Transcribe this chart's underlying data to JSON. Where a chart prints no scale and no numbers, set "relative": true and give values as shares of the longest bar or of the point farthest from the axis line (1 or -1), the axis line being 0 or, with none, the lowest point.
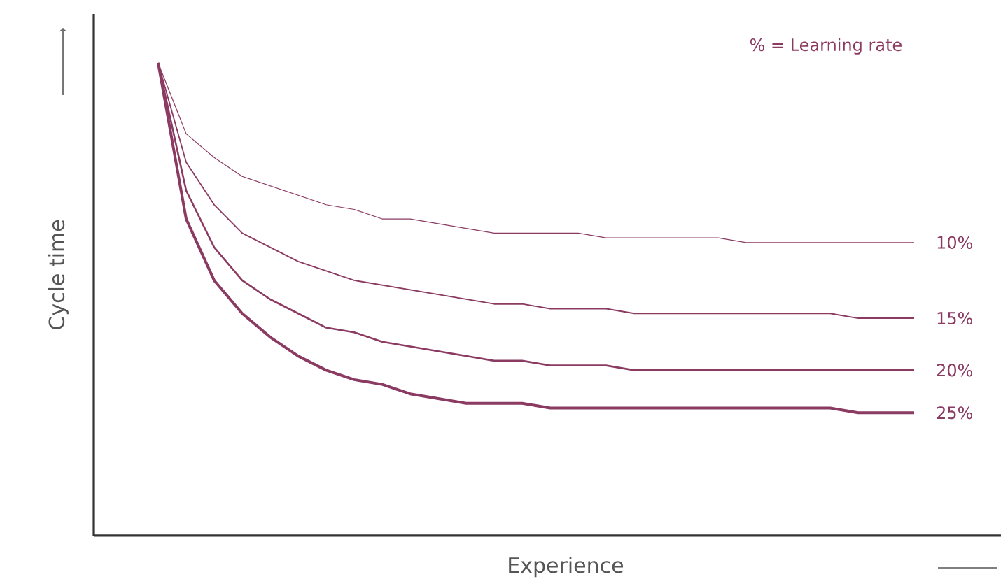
{
  "chart_data": {
    "type": "line",
    "relative": true,
    "xlabel": "Experience",
    "ylabel": "Cycle time",
    "annotations": [
      "% = Learning rate"
    ],
    "categories": [
      null,
      null,
      null,
      null,
      null,
      null,
      null,
      null,
      null,
      null,
      null,
      null,
      null,
      null,
      null,
      null,
      null,
      null,
      null,
      null,
      null,
      null,
      null,
      null,
      null,
      null,
      null,
      null
    ],
    "marker": "none",
    "line_style": "solid",
    "series": [
      {
        "name": "10%",
        "color": "#8b3a62",
        "values": [
          1.0,
          0.85,
          0.8,
          0.76,
          0.74,
          0.72,
          0.7,
          0.69,
          0.67,
          0.67,
          0.66,
          0.65,
          0.64,
          0.64,
          0.64,
          0.64,
          0.63,
          0.63,
          0.63,
          0.63,
          0.63,
          0.62,
          0.62,
          0.62,
          0.62,
          0.62,
          0.62,
          0.62
        ]
      },
      {
        "name": "15%",
        "color": "#8b3a62",
        "values": [
          1.0,
          0.79,
          0.7,
          0.64,
          0.61,
          0.58,
          0.56,
          0.54,
          0.53,
          0.52,
          0.51,
          0.5,
          0.49,
          0.49,
          0.48,
          0.48,
          0.48,
          0.47,
          0.47,
          0.47,
          0.47,
          0.47,
          0.47,
          0.47,
          0.47,
          0.46,
          0.46,
          0.46
        ]
      },
      {
        "name": "20%",
        "color": "#8b3a62",
        "values": [
          1.0,
          0.73,
          0.61,
          0.54,
          0.5,
          0.47,
          0.44,
          0.43,
          0.41,
          0.4,
          0.39,
          0.38,
          0.37,
          0.37,
          0.36,
          0.36,
          0.36,
          0.35,
          0.35,
          0.35,
          0.35,
          0.35,
          0.35,
          0.35,
          0.35,
          0.35,
          0.35,
          0.35
        ]
      },
      {
        "name": "25%",
        "color": "#8b3a62",
        "values": [
          1.0,
          0.67,
          0.54,
          0.47,
          0.42,
          0.38,
          0.35,
          0.33,
          0.32,
          0.3,
          0.29,
          0.28,
          0.28,
          0.28,
          0.27,
          0.27,
          0.27,
          0.27,
          0.27,
          0.27,
          0.27,
          0.27,
          0.27,
          0.27,
          0.27,
          0.26,
          0.26,
          0.26
        ]
      }
    ]
  }
}
